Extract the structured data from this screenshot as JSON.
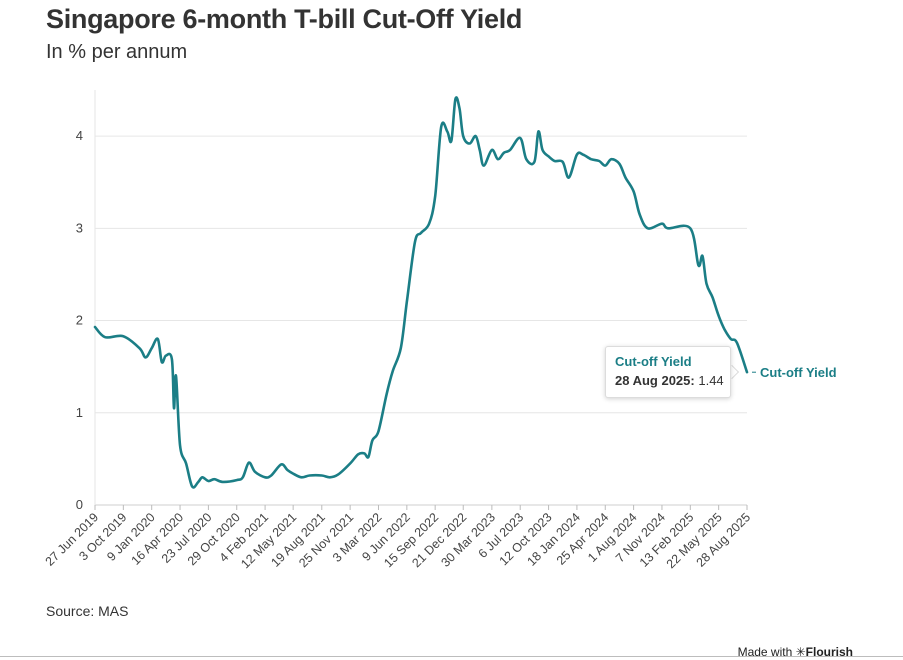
{
  "title": "Singapore 6-month T-bill Cut-Off Yield",
  "subtitle": "In % per annum",
  "source": "Source: MAS",
  "credit": {
    "prefix": "Made with ",
    "brand": "✳Flourish"
  },
  "tooltip": {
    "series": "Cut-off Yield",
    "date": "28 Aug 2025:",
    "value": "1.44"
  },
  "colors": {
    "line": "#1b7e86",
    "grid": "#e6e6e6",
    "text": "#333333"
  },
  "chart_data": {
    "type": "line",
    "title": "Singapore 6-month T-bill Cut-Off Yield",
    "subtitle": "In % per annum",
    "xlabel": "",
    "ylabel": "",
    "ylim": [
      0,
      4.5
    ],
    "yticks": [
      0,
      1,
      2,
      3,
      4
    ],
    "grid": "horizontal",
    "x_ticks": [
      "27 Jun 2019",
      "3 Oct 2019",
      "9 Jan 2020",
      "16 Apr 2020",
      "23 Jul 2020",
      "29 Oct 2020",
      "4 Feb 2021",
      "12 May 2021",
      "19 Aug 2021",
      "25 Nov 2021",
      "3 Mar 2022",
      "9 Jun 2022",
      "15 Sep 2022",
      "21 Dec 2022",
      "30 Mar 2023",
      "6 Jul 2023",
      "12 Oct 2023",
      "18 Jan 2024",
      "25 Apr 2024",
      "1 Aug 2024",
      "7 Nov 2024",
      "13 Feb 2025",
      "22 May 2025",
      "28 Aug 2025"
    ],
    "series": [
      {
        "name": "Cut-off Yield",
        "end_label": "Cut-off Yield",
        "points": [
          [
            "27 Jun 2019",
            1.93
          ],
          [
            "1 Aug 2019",
            1.82
          ],
          [
            "3 Oct 2019",
            1.83
          ],
          [
            "28 Nov 2019",
            1.7
          ],
          [
            "19 Dec 2019",
            1.6
          ],
          [
            "9 Jan 2020",
            1.7
          ],
          [
            "30 Jan 2020",
            1.8
          ],
          [
            "13 Feb 2020",
            1.55
          ],
          [
            "27 Feb 2020",
            1.62
          ],
          [
            "19 Mar 2020",
            1.58
          ],
          [
            "26 Mar 2020",
            1.05
          ],
          [
            "2 Apr 2020",
            1.4
          ],
          [
            "16 Apr 2020",
            0.65
          ],
          [
            "7 May 2020",
            0.45
          ],
          [
            "28 May 2020",
            0.2
          ],
          [
            "18 Jun 2020",
            0.25
          ],
          [
            "2 Jul 2020",
            0.3
          ],
          [
            "23 Jul 2020",
            0.26
          ],
          [
            "13 Aug 2020",
            0.28
          ],
          [
            "10 Sep 2020",
            0.25
          ],
          [
            "29 Oct 2020",
            0.27
          ],
          [
            "19 Nov 2020",
            0.3
          ],
          [
            "10 Dec 2020",
            0.46
          ],
          [
            "31 Dec 2020",
            0.36
          ],
          [
            "4 Feb 2021",
            0.3
          ],
          [
            "25 Feb 2021",
            0.32
          ],
          [
            "1 Apr 2021",
            0.44
          ],
          [
            "22 Apr 2021",
            0.38
          ],
          [
            "12 May 2021",
            0.34
          ],
          [
            "10 Jun 2021",
            0.3
          ],
          [
            "8 Jul 2021",
            0.32
          ],
          [
            "19 Aug 2021",
            0.32
          ],
          [
            "16 Sep 2021",
            0.3
          ],
          [
            "14 Oct 2021",
            0.33
          ],
          [
            "25 Nov 2021",
            0.45
          ],
          [
            "23 Dec 2021",
            0.55
          ],
          [
            "13 Jan 2022",
            0.56
          ],
          [
            "27 Jan 2022",
            0.52
          ],
          [
            "10 Feb 2022",
            0.7
          ],
          [
            "3 Mar 2022",
            0.8
          ],
          [
            "31 Mar 2022",
            1.2
          ],
          [
            "21 Apr 2022",
            1.45
          ],
          [
            "19 May 2022",
            1.7
          ],
          [
            "9 Jun 2022",
            2.2
          ],
          [
            "7 Jul 2022",
            2.85
          ],
          [
            "28 Jul 2022",
            2.95
          ],
          [
            "25 Aug 2022",
            3.05
          ],
          [
            "15 Sep 2022",
            3.35
          ],
          [
            "6 Oct 2022",
            4.1
          ],
          [
            "27 Oct 2022",
            4.05
          ],
          [
            "10 Nov 2022",
            3.95
          ],
          [
            "24 Nov 2022",
            4.4
          ],
          [
            "8 Dec 2022",
            4.3
          ],
          [
            "21 Dec 2022",
            4.0
          ],
          [
            "12 Jan 2023",
            3.92
          ],
          [
            "2 Feb 2023",
            4.0
          ],
          [
            "16 Feb 2023",
            3.85
          ],
          [
            "2 Mar 2023",
            3.68
          ],
          [
            "30 Mar 2023",
            3.85
          ],
          [
            "20 Apr 2023",
            3.75
          ],
          [
            "11 May 2023",
            3.82
          ],
          [
            "1 Jun 2023",
            3.85
          ],
          [
            "6 Jul 2023",
            3.98
          ],
          [
            "27 Jul 2023",
            3.75
          ],
          [
            "24 Aug 2023",
            3.72
          ],
          [
            "7 Sep 2023",
            4.05
          ],
          [
            "21 Sep 2023",
            3.85
          ],
          [
            "12 Oct 2023",
            3.78
          ],
          [
            "2 Nov 2023",
            3.73
          ],
          [
            "30 Nov 2023",
            3.72
          ],
          [
            "21 Dec 2023",
            3.55
          ],
          [
            "18 Jan 2024",
            3.8
          ],
          [
            "8 Feb 2024",
            3.8
          ],
          [
            "7 Mar 2024",
            3.75
          ],
          [
            "4 Apr 2024",
            3.73
          ],
          [
            "25 Apr 2024",
            3.68
          ],
          [
            "16 May 2024",
            3.75
          ],
          [
            "13 Jun 2024",
            3.7
          ],
          [
            "4 Jul 2024",
            3.55
          ],
          [
            "1 Aug 2024",
            3.4
          ],
          [
            "22 Aug 2024",
            3.15
          ],
          [
            "19 Sep 2024",
            3.0
          ],
          [
            "7 Nov 2024",
            3.05
          ],
          [
            "28 Nov 2024",
            3.0
          ],
          [
            "13 Feb 2025",
            3.0
          ],
          [
            "13 Mar 2025",
            2.6
          ],
          [
            "27 Mar 2025",
            2.7
          ],
          [
            "10 Apr 2025",
            2.4
          ],
          [
            "1 May 2025",
            2.25
          ],
          [
            "22 May 2025",
            2.05
          ],
          [
            "12 Jun 2025",
            1.9
          ],
          [
            "3 Jul 2025",
            1.8
          ],
          [
            "24 Jul 2025",
            1.76
          ],
          [
            "28 Aug 2025",
            1.44
          ]
        ]
      }
    ]
  }
}
